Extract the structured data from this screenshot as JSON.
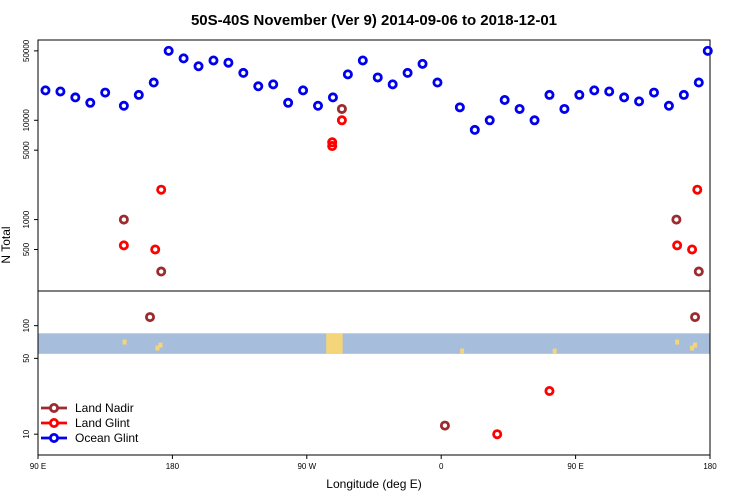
{
  "chart_data": {
    "type": "scatter",
    "title": "50S-40S November (Ver 9)   2014-09-06 to 2018-12-01",
    "xlabel": "Longitude (deg E)",
    "ylabel": "N Total",
    "x_ticks": [
      {
        "value": 90,
        "label": "90 E"
      },
      {
        "value": 180,
        "label": "180"
      },
      {
        "value": 270,
        "label": "90 W"
      },
      {
        "value": 360,
        "label": "0"
      },
      {
        "value": 450,
        "label": "90 E"
      },
      {
        "value": 540,
        "label": "180"
      }
    ],
    "xlim": [
      90,
      540
    ],
    "upper_panel": {
      "scale": "log",
      "ylim": [
        200,
        60000
      ],
      "y_ticks": [
        {
          "value": 500,
          "label": "500"
        },
        {
          "value": 1000,
          "label": "1000"
        },
        {
          "value": 5000,
          "label": "5000"
        },
        {
          "value": 10000,
          "label": "10000"
        },
        {
          "value": 50000,
          "label": "50000"
        }
      ]
    },
    "lower_panel": {
      "scale": "log",
      "ylim": [
        7,
        200
      ],
      "y_ticks": [
        {
          "value": 10,
          "label": "10"
        },
        {
          "value": 50,
          "label": "50"
        },
        {
          "value": 100,
          "label": "100"
        }
      ],
      "land_band": {
        "from": 55,
        "to": 85,
        "color": "#a7bddc"
      }
    },
    "series": [
      {
        "name": "Land Nadir",
        "color": "#9b2b2f",
        "points": [
          [
            147.5,
            1000
          ],
          [
            172.5,
            300
          ],
          [
            165,
            120
          ],
          [
            293.5,
            13000
          ],
          [
            517.5,
            1000
          ],
          [
            530,
            120
          ],
          [
            532.5,
            300
          ],
          [
            362.5,
            12
          ]
        ]
      },
      {
        "name": "Land Glint",
        "color": "#ff0000",
        "points": [
          [
            147.5,
            550
          ],
          [
            172.5,
            2000
          ],
          [
            168.5,
            500
          ],
          [
            287,
            6000
          ],
          [
            287,
            5500
          ],
          [
            293.5,
            10000
          ],
          [
            518,
            550
          ],
          [
            528,
            500
          ],
          [
            531.5,
            2000
          ],
          [
            397.5,
            10
          ],
          [
            432.5,
            25
          ]
        ]
      },
      {
        "name": "Ocean Glint",
        "color": "#0000ee",
        "points": [
          [
            95,
            20000
          ],
          [
            105,
            19500
          ],
          [
            115,
            17000
          ],
          [
            125,
            15000
          ],
          [
            135,
            19000
          ],
          [
            147.5,
            14000
          ],
          [
            157.5,
            18000
          ],
          [
            167.5,
            24000
          ],
          [
            177.5,
            50000
          ],
          [
            187.5,
            42000
          ],
          [
            197.5,
            35000
          ],
          [
            207.5,
            40000
          ],
          [
            217.5,
            38000
          ],
          [
            227.5,
            30000
          ],
          [
            237.5,
            22000
          ],
          [
            247.5,
            23000
          ],
          [
            257.5,
            15000
          ],
          [
            267.5,
            20000
          ],
          [
            277.5,
            14000
          ],
          [
            287.5,
            17000
          ],
          [
            297.5,
            29000
          ],
          [
            307.5,
            40000
          ],
          [
            317.5,
            27000
          ],
          [
            327.5,
            23000
          ],
          [
            337.5,
            30000
          ],
          [
            347.5,
            37000
          ],
          [
            357.5,
            24000
          ],
          [
            372.5,
            13500
          ],
          [
            382.5,
            8000
          ],
          [
            392.5,
            10000
          ],
          [
            402.5,
            16000
          ],
          [
            412.5,
            13000
          ],
          [
            422.5,
            10000
          ],
          [
            432.5,
            18000
          ],
          [
            442.5,
            13000
          ],
          [
            452.5,
            18000
          ],
          [
            462.5,
            20000
          ],
          [
            472.5,
            19500
          ],
          [
            482.5,
            17000
          ],
          [
            492.5,
            15500
          ],
          [
            502.5,
            19000
          ],
          [
            512.5,
            14000
          ],
          [
            522.5,
            18000
          ],
          [
            532.5,
            24000
          ],
          [
            538.5,
            50000
          ]
        ]
      }
    ],
    "legend": {
      "location": "bottom-left",
      "entries": [
        "Land Nadir",
        "Land Glint",
        "Ocean Glint"
      ]
    }
  }
}
